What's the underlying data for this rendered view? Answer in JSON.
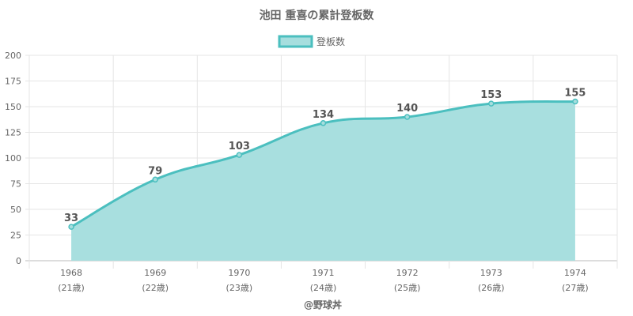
{
  "chart_data": {
    "type": "area",
    "title": "池田 重喜の累計登板数",
    "categories": [
      "1968",
      "1969",
      "1970",
      "1971",
      "1972",
      "1973",
      "1974"
    ],
    "category_sublabels": [
      "(21歳)",
      "(22歳)",
      "(23歳)",
      "(24歳)",
      "(25歳)",
      "(26歳)",
      "(27歳)"
    ],
    "series": [
      {
        "name": "登板数",
        "values": [
          33,
          79,
          103,
          134,
          140,
          153,
          155
        ]
      }
    ],
    "ylim": [
      0,
      200
    ],
    "yticks": [
      0,
      25,
      50,
      75,
      100,
      125,
      150,
      175,
      200
    ],
    "grid": true,
    "legend": "top",
    "colors": {
      "line": "#4bbfbf",
      "fill": "#a6dede"
    }
  },
  "footer": "@野球丼"
}
